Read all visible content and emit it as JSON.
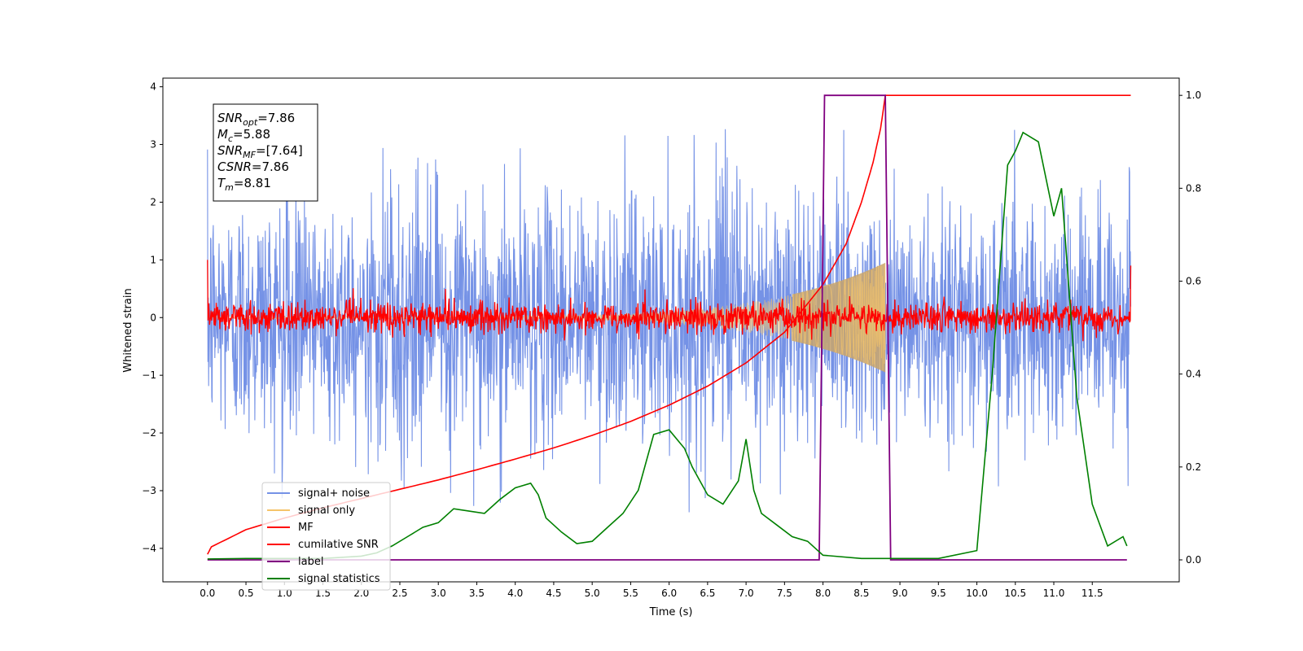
{
  "chart_data": {
    "type": "line",
    "xlabel": "Time (s)",
    "ylabel": "Whitened strain",
    "xlim": [
      -0.58,
      12.63
    ],
    "ylim": [
      -4.58,
      4.15
    ],
    "ylim_right": [
      -0.0473,
      1.0371
    ],
    "x_ticks": [
      "0.0",
      "0.5",
      "1.0",
      "1.5",
      "2.0",
      "2.5",
      "3.0",
      "3.5",
      "4.0",
      "4.5",
      "5.0",
      "5.5",
      "6.0",
      "6.5",
      "7.0",
      "7.5",
      "8.0",
      "8.5",
      "9.0",
      "9.5",
      "10.0",
      "10.5",
      "11.0",
      "11.5"
    ],
    "y_ticks": [
      "4",
      "3",
      "2",
      "1",
      "0",
      "−1",
      "−2",
      "−3",
      "−4"
    ],
    "y_ticks_right": [
      "1.0",
      "0.8",
      "0.6",
      "0.4",
      "0.2",
      "0.0"
    ],
    "grid": false,
    "legend_position": "lower-left",
    "annotation": {
      "lines": [
        {
          "sym": "SNR",
          "sub": "opt",
          "val": "=7.86"
        },
        {
          "sym": "M",
          "sub": "c",
          "val": "=5.88"
        },
        {
          "sym": "SNR",
          "sub": "MF",
          "val": "=[7.64]"
        },
        {
          "sym": "CSNR",
          "sub": "",
          "val": "=7.86"
        },
        {
          "sym": "T",
          "sub": "m",
          "val": "=8.81"
        }
      ]
    },
    "series": [
      {
        "name": "signal+ noise",
        "color": "#7592e6",
        "axis": "left",
        "style": "noise",
        "x_range": [
          0,
          12.0
        ],
        "std": 1.05,
        "peak_amp": 3.4
      },
      {
        "name": "signal only",
        "color": "#f5c46a",
        "axis": "left",
        "style": "chirp",
        "x_range": [
          0,
          8.81
        ],
        "amp_start": 0.02,
        "amp_end": 0.95
      },
      {
        "name": "MF",
        "color": "#ff0000",
        "axis": "left",
        "style": "mf_noise",
        "x_range": [
          0,
          12.0
        ],
        "std": 0.13,
        "edge_spikes": [
          1.0,
          0.9
        ]
      },
      {
        "name": "cumilative SNR",
        "color": "#ff0000",
        "axis": "right",
        "x": [
          0.0,
          0.05,
          0.5,
          1.0,
          1.5,
          2.0,
          2.5,
          3.0,
          3.5,
          4.0,
          4.5,
          5.0,
          5.5,
          6.0,
          6.5,
          7.0,
          7.5,
          8.0,
          8.3,
          8.5,
          8.65,
          8.75,
          8.81,
          12.0
        ],
        "y": [
          0.012,
          0.028,
          0.065,
          0.09,
          0.112,
          0.132,
          0.152,
          0.172,
          0.194,
          0.217,
          0.241,
          0.268,
          0.298,
          0.333,
          0.374,
          0.424,
          0.49,
          0.593,
          0.68,
          0.77,
          0.855,
          0.93,
          1.0,
          1.0
        ]
      },
      {
        "name": "label",
        "color": "#800080",
        "axis": "right",
        "x": [
          0.0,
          7.95,
          8.02,
          8.81,
          8.88,
          11.95
        ],
        "y": [
          0.0,
          0.0,
          1.0,
          1.0,
          0.0,
          0.0
        ]
      },
      {
        "name": "signal statistics",
        "color": "#008000",
        "axis": "right",
        "x": [
          0.0,
          0.5,
          1.0,
          1.5,
          2.0,
          2.2,
          2.4,
          2.6,
          2.8,
          3.0,
          3.2,
          3.4,
          3.6,
          3.8,
          4.0,
          4.2,
          4.3,
          4.4,
          4.6,
          4.8,
          5.0,
          5.2,
          5.4,
          5.6,
          5.8,
          6.0,
          6.2,
          6.3,
          6.5,
          6.7,
          6.9,
          7.0,
          7.1,
          7.2,
          7.4,
          7.6,
          7.8,
          8.0,
          8.5,
          9.0,
          9.5,
          10.0,
          10.2,
          10.4,
          10.5,
          10.6,
          10.8,
          11.0,
          11.1,
          11.3,
          11.5,
          11.7,
          11.9,
          11.95
        ],
        "y": [
          0.002,
          0.003,
          0.003,
          0.003,
          0.008,
          0.015,
          0.03,
          0.05,
          0.07,
          0.08,
          0.11,
          0.105,
          0.1,
          0.13,
          0.155,
          0.165,
          0.14,
          0.09,
          0.06,
          0.035,
          0.04,
          0.07,
          0.1,
          0.15,
          0.27,
          0.28,
          0.24,
          0.2,
          0.14,
          0.12,
          0.17,
          0.26,
          0.15,
          0.1,
          0.075,
          0.05,
          0.04,
          0.01,
          0.003,
          0.003,
          0.003,
          0.02,
          0.4,
          0.85,
          0.88,
          0.92,
          0.9,
          0.74,
          0.8,
          0.35,
          0.12,
          0.03,
          0.05,
          0.03
        ]
      }
    ]
  }
}
